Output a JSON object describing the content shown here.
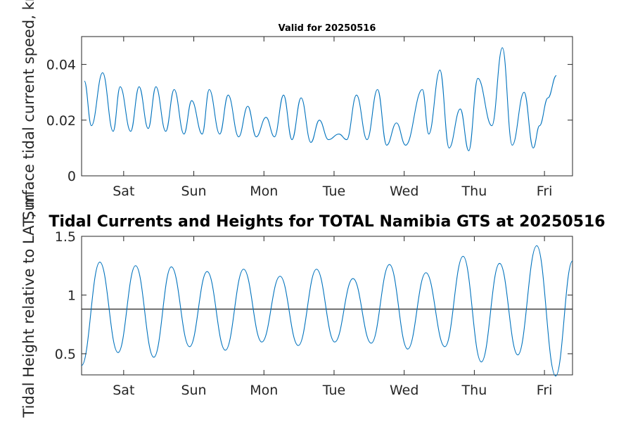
{
  "chart_data": [
    {
      "type": "line",
      "title": "Valid for 20250516",
      "ylabel": "Surface tidal current speed, kn",
      "ylim": [
        0,
        0.05
      ],
      "yticks": [
        0,
        0.02,
        0.04
      ],
      "ytick_labels": [
        "0",
        "0.02",
        "0.04"
      ],
      "xlim": [
        0,
        7
      ],
      "xtick_positions": [
        0.6,
        1.6,
        2.6,
        3.6,
        4.6,
        5.6,
        6.6
      ],
      "xtick_labels": [
        "Sat",
        "Sun",
        "Mon",
        "Tue",
        "Wed",
        "Thu",
        "Fri"
      ],
      "grid": false,
      "color": "#0072BD",
      "series": [
        {
          "x": [
            0.04,
            0.14,
            0.3,
            0.45,
            0.55,
            0.7,
            0.82,
            0.95,
            1.06,
            1.2,
            1.32,
            1.46,
            1.57,
            1.72,
            1.82,
            1.97,
            2.09,
            2.24,
            2.37,
            2.49,
            2.63,
            2.75,
            2.88,
            3.0,
            3.13,
            3.27,
            3.39,
            3.52,
            3.67,
            3.78,
            3.92,
            4.07,
            4.22,
            4.35,
            4.49,
            4.62,
            4.86,
            4.95,
            5.11,
            5.24,
            5.4,
            5.52,
            5.65,
            5.85,
            6.0,
            6.14,
            6.31,
            6.44,
            6.53,
            6.65,
            6.77
          ],
          "y": [
            0.034,
            0.018,
            0.037,
            0.016,
            0.032,
            0.016,
            0.032,
            0.017,
            0.032,
            0.016,
            0.031,
            0.015,
            0.027,
            0.015,
            0.031,
            0.015,
            0.029,
            0.014,
            0.025,
            0.014,
            0.021,
            0.014,
            0.029,
            0.013,
            0.028,
            0.012,
            0.02,
            0.013,
            0.015,
            0.013,
            0.029,
            0.013,
            0.031,
            0.011,
            0.019,
            0.011,
            0.031,
            0.015,
            0.038,
            0.01,
            0.024,
            0.009,
            0.035,
            0.018,
            0.046,
            0.011,
            0.03,
            0.01,
            0.018,
            0.028,
            0.036
          ]
        }
      ]
    },
    {
      "type": "line",
      "title": "Tidal Currents and Heights for TOTAL Namibia GTS at 20250516",
      "ylabel": "Tidal Height relative to LAT, m",
      "ylim": [
        0.32,
        1.5
      ],
      "yticks": [
        0.5,
        1,
        1.5
      ],
      "ytick_labels": [
        "0.5",
        "1",
        "1.5"
      ],
      "xlim": [
        0,
        7
      ],
      "xtick_positions": [
        0.6,
        1.6,
        2.6,
        3.6,
        4.6,
        5.6,
        6.6
      ],
      "xtick_labels": [
        "Sat",
        "Sun",
        "Mon",
        "Tue",
        "Wed",
        "Thu",
        "Fri"
      ],
      "grid": false,
      "color": "#0072BD",
      "reference_line": 0.88,
      "series": [
        {
          "x": [
            0.0,
            0.26,
            0.52,
            0.77,
            1.03,
            1.28,
            1.54,
            1.79,
            2.05,
            2.31,
            2.57,
            2.83,
            3.09,
            3.35,
            3.61,
            3.87,
            4.13,
            4.39,
            4.65,
            4.91,
            5.18,
            5.44,
            5.7,
            5.96,
            6.22,
            6.49,
            6.76,
            7.0
          ],
          "y": [
            0.4,
            1.28,
            0.51,
            1.25,
            0.47,
            1.24,
            0.56,
            1.2,
            0.53,
            1.22,
            0.6,
            1.16,
            0.57,
            1.22,
            0.6,
            1.14,
            0.59,
            1.26,
            0.54,
            1.19,
            0.56,
            1.33,
            0.43,
            1.27,
            0.49,
            1.42,
            0.31,
            1.29
          ]
        }
      ]
    }
  ]
}
